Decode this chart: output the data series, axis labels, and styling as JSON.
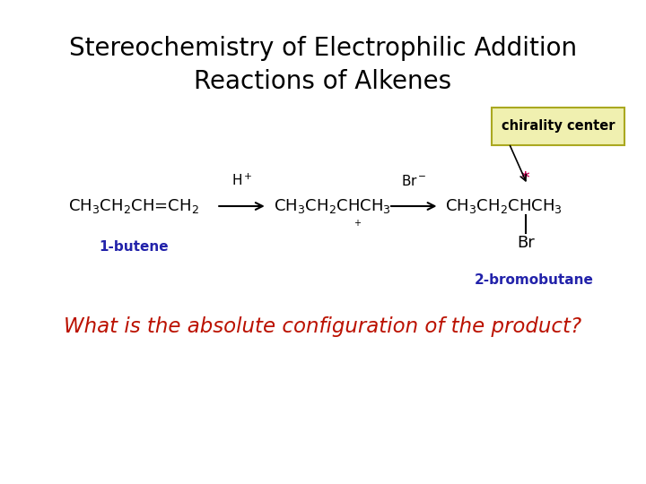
{
  "title_line1": "Stereochemistry of Electrophilic Addition",
  "title_line2": "Reactions of Alkenes",
  "title_fontsize": 20,
  "background_color": "#ffffff",
  "molecule1_label": "1-butene",
  "molecule1_label_color": "#2222aa",
  "molecule3_label": "2-bromobutane",
  "molecule3_label_color": "#2222aa",
  "chirality_box_text": "chirality center",
  "chirality_box_color": "#f0f0b0",
  "chirality_box_border": "#aaa820",
  "chirality_star_color": "#cc0055",
  "question_text": "What is the absolute configuration of the product?",
  "question_color": "#bb1100",
  "question_fontsize": 16.5,
  "figsize": [
    7.2,
    5.4
  ],
  "dpi": 100
}
